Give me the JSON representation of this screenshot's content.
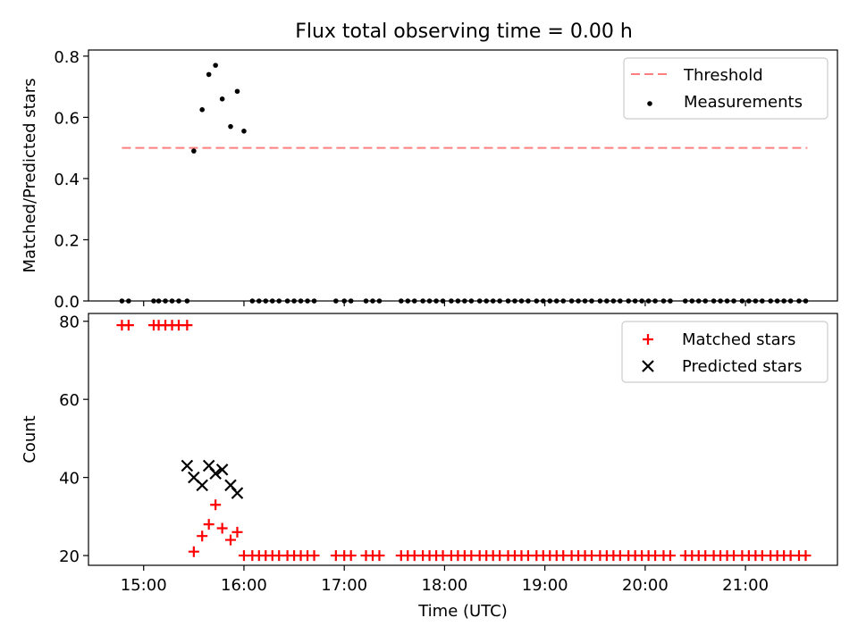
{
  "figure": {
    "title": "Flux total observing time = 0.00 h"
  },
  "colors": {
    "threshold": "#ff7f7f",
    "measurements": "#000000",
    "matched": "#ff0000",
    "predicted": "#000000"
  },
  "chart_data": [
    {
      "type": "scatter",
      "xlabel": "",
      "ylabel": "Matched/Predicted stars",
      "xlim": [
        "14:27",
        "21:55"
      ],
      "ylim": [
        0,
        0.82
      ],
      "yticks": [
        "0.0",
        "0.2",
        "0.4",
        "0.6",
        "0.8"
      ],
      "legend_position": "upper right",
      "threshold": {
        "name": "Threshold",
        "y": 0.5,
        "x": [
          "14:47",
          "21:37"
        ]
      },
      "series": [
        {
          "name": "Measurements",
          "x": [
            "14:47",
            "14:51",
            "15:06",
            "15:09",
            "15:13",
            "15:17",
            "15:21",
            "15:26",
            "15:30",
            "15:35",
            "15:39",
            "15:43",
            "15:47",
            "15:52",
            "15:56",
            "16:00",
            "16:05",
            "16:09",
            "16:13",
            "16:17",
            "16:21",
            "16:26",
            "16:30",
            "16:34",
            "16:38",
            "16:42",
            "16:55",
            "17:00",
            "17:04",
            "17:13",
            "17:17",
            "17:21",
            "17:34",
            "17:38",
            "17:42",
            "17:47",
            "17:51",
            "17:55",
            "17:59",
            "18:04",
            "18:08",
            "18:12",
            "18:16",
            "18:21",
            "18:25",
            "18:29",
            "18:33",
            "18:38",
            "18:42",
            "18:46",
            "18:50",
            "18:55",
            "18:59",
            "19:03",
            "19:07",
            "19:11",
            "19:16",
            "19:20",
            "19:24",
            "19:28",
            "19:33",
            "19:37",
            "19:41",
            "19:45",
            "19:50",
            "19:54",
            "19:58",
            "20:02",
            "20:06",
            "20:11",
            "20:15",
            "20:24",
            "20:28",
            "20:32",
            "20:36",
            "20:41",
            "20:45",
            "20:49",
            "20:53",
            "20:58",
            "21:02",
            "21:06",
            "21:10",
            "21:15",
            "21:19",
            "21:23",
            "21:27",
            "21:32",
            "21:36"
          ],
          "y": [
            0,
            0,
            0,
            0,
            0,
            0,
            0,
            0,
            0.49,
            0.625,
            0.74,
            0.77,
            0.66,
            0.57,
            0.685,
            0.555,
            0,
            0,
            0,
            0,
            0,
            0,
            0,
            0,
            0,
            0,
            0,
            0,
            0,
            0,
            0,
            0,
            0,
            0,
            0,
            0,
            0,
            0,
            0,
            0,
            0,
            0,
            0,
            0,
            0,
            0,
            0,
            0,
            0,
            0,
            0,
            0,
            0,
            0,
            0,
            0,
            0,
            0,
            0,
            0,
            0,
            0,
            0,
            0,
            0,
            0,
            0,
            0,
            0,
            0,
            0,
            0,
            0,
            0,
            0,
            0,
            0,
            0,
            0,
            0,
            0,
            0,
            0,
            0,
            0,
            0,
            0,
            0,
            0
          ]
        }
      ]
    },
    {
      "type": "scatter",
      "xlabel": "Time (UTC)",
      "ylabel": "Count",
      "xlim": [
        "14:27",
        "21:55"
      ],
      "ylim": [
        17.5,
        82
      ],
      "yticks": [
        "20",
        "40",
        "60",
        "80"
      ],
      "xticks": [
        "15:00",
        "16:00",
        "17:00",
        "18:00",
        "19:00",
        "20:00",
        "21:00"
      ],
      "legend_position": "upper right",
      "series": [
        {
          "name": "Matched stars",
          "marker": "+",
          "x": [
            "14:47",
            "14:51",
            "15:06",
            "15:09",
            "15:13",
            "15:17",
            "15:21",
            "15:26",
            "15:30",
            "15:35",
            "15:39",
            "15:43",
            "15:47",
            "15:52",
            "15:56",
            "16:00",
            "16:05",
            "16:09",
            "16:13",
            "16:17",
            "16:21",
            "16:26",
            "16:30",
            "16:34",
            "16:38",
            "16:42",
            "16:55",
            "17:00",
            "17:04",
            "17:13",
            "17:17",
            "17:21",
            "17:34",
            "17:38",
            "17:42",
            "17:47",
            "17:51",
            "17:55",
            "17:59",
            "18:04",
            "18:08",
            "18:12",
            "18:16",
            "18:21",
            "18:25",
            "18:29",
            "18:33",
            "18:38",
            "18:42",
            "18:46",
            "18:50",
            "18:55",
            "18:59",
            "19:03",
            "19:07",
            "19:11",
            "19:16",
            "19:20",
            "19:24",
            "19:28",
            "19:33",
            "19:37",
            "19:41",
            "19:45",
            "19:50",
            "19:54",
            "19:58",
            "20:02",
            "20:06",
            "20:11",
            "20:15",
            "20:24",
            "20:28",
            "20:32",
            "20:36",
            "20:41",
            "20:45",
            "20:49",
            "20:53",
            "20:58",
            "21:02",
            "21:06",
            "21:10",
            "21:15",
            "21:19",
            "21:23",
            "21:27",
            "21:32",
            "21:36"
          ],
          "y": [
            79,
            79,
            79,
            79,
            79,
            79,
            79,
            79,
            21,
            25,
            28,
            33,
            27,
            24,
            26,
            20,
            20,
            20,
            20,
            20,
            20,
            20,
            20,
            20,
            20,
            20,
            20,
            20,
            20,
            20,
            20,
            20,
            20,
            20,
            20,
            20,
            20,
            20,
            20,
            20,
            20,
            20,
            20,
            20,
            20,
            20,
            20,
            20,
            20,
            20,
            20,
            20,
            20,
            20,
            20,
            20,
            20,
            20,
            20,
            20,
            20,
            20,
            20,
            20,
            20,
            20,
            20,
            20,
            20,
            20,
            20,
            20,
            20,
            20,
            20,
            20,
            20,
            20,
            20,
            20,
            20,
            20,
            20,
            20,
            20,
            20,
            20,
            20,
            20
          ]
        },
        {
          "name": "Predicted stars",
          "marker": "x",
          "x": [
            "15:26",
            "15:30",
            "15:35",
            "15:39",
            "15:43",
            "15:47",
            "15:52",
            "15:56"
          ],
          "y": [
            43,
            40,
            38,
            43,
            41,
            42,
            38,
            36
          ]
        }
      ]
    }
  ]
}
